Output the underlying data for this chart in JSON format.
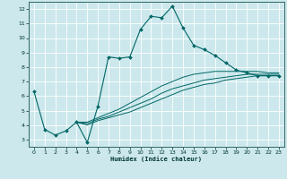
{
  "title": "",
  "xlabel": "Humidex (Indice chaleur)",
  "ylabel": "",
  "bg_color": "#cce8ec",
  "grid_color": "#ffffff",
  "line_color": "#006666",
  "xlim": [
    -0.5,
    23.5
  ],
  "ylim": [
    2.5,
    12.5
  ],
  "xticks": [
    0,
    1,
    2,
    3,
    4,
    5,
    6,
    7,
    8,
    9,
    10,
    11,
    12,
    13,
    14,
    15,
    16,
    17,
    18,
    19,
    20,
    21,
    22,
    23
  ],
  "yticks": [
    3,
    4,
    5,
    6,
    7,
    8,
    9,
    10,
    11,
    12
  ],
  "series": [
    {
      "x": [
        0,
        1,
        2,
        3,
        4,
        5,
        6,
        7,
        8,
        9,
        10,
        11,
        12,
        13,
        14,
        15,
        16,
        17,
        18,
        19,
        20,
        21,
        22,
        23
      ],
      "y": [
        6.3,
        3.7,
        3.3,
        3.6,
        4.2,
        2.8,
        5.3,
        8.7,
        8.6,
        8.7,
        10.6,
        11.5,
        11.4,
        12.2,
        10.7,
        9.5,
        9.2,
        8.8,
        8.3,
        7.8,
        7.6,
        7.4,
        7.4,
        7.4
      ],
      "marker": true
    },
    {
      "x": [
        4,
        5,
        6,
        7,
        8,
        9,
        10,
        11,
        12,
        13,
        14,
        15,
        16,
        17,
        18,
        19,
        20,
        21,
        22,
        23
      ],
      "y": [
        4.2,
        4.0,
        4.3,
        4.5,
        4.7,
        4.9,
        5.2,
        5.5,
        5.8,
        6.1,
        6.4,
        6.6,
        6.8,
        6.9,
        7.1,
        7.2,
        7.3,
        7.4,
        7.4,
        7.4
      ],
      "marker": false
    },
    {
      "x": [
        4,
        5,
        6,
        7,
        8,
        9,
        10,
        11,
        12,
        13,
        14,
        15,
        16,
        17,
        18,
        19,
        20,
        21,
        22,
        23
      ],
      "y": [
        4.2,
        4.1,
        4.4,
        4.6,
        4.9,
        5.2,
        5.5,
        5.8,
        6.2,
        6.5,
        6.7,
        6.9,
        7.1,
        7.2,
        7.3,
        7.4,
        7.5,
        7.5,
        7.5,
        7.5
      ],
      "marker": false
    },
    {
      "x": [
        4,
        5,
        6,
        7,
        8,
        9,
        10,
        11,
        12,
        13,
        14,
        15,
        16,
        17,
        18,
        19,
        20,
        21,
        22,
        23
      ],
      "y": [
        4.2,
        4.2,
        4.5,
        4.8,
        5.1,
        5.5,
        5.9,
        6.3,
        6.7,
        7.0,
        7.3,
        7.5,
        7.6,
        7.7,
        7.7,
        7.7,
        7.7,
        7.7,
        7.6,
        7.6
      ],
      "marker": false
    }
  ]
}
